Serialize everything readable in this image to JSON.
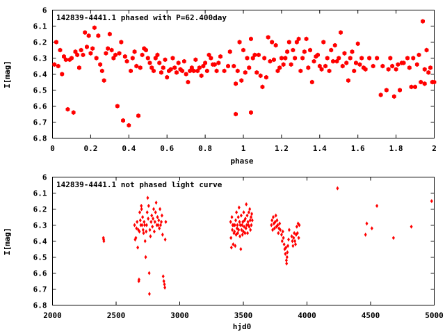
{
  "chart_data": [
    {
      "type": "scatter",
      "title": "142839-4441.1 phased with P=62.400day",
      "xlabel": "phase",
      "ylabel": "I[mag]",
      "xlim": [
        0,
        2
      ],
      "ylim": [
        6.8,
        6
      ],
      "y_reversed": true,
      "grid": false,
      "x_ticks": [
        "0",
        "0.2",
        "0.4",
        "0.6",
        "0.8",
        "1",
        "1.2",
        "1.4",
        "1.6",
        "1.8",
        "2"
      ],
      "y_ticks": [
        "6",
        "6.1",
        "6.2",
        "6.3",
        "6.4",
        "6.5",
        "6.6",
        "6.7",
        "6.8"
      ],
      "marker": "filled-hexagon",
      "color": "#ff0000",
      "points": [
        [
          0.01,
          6.34
        ],
        [
          0.02,
          6.2
        ],
        [
          0.03,
          6.35
        ],
        [
          0.04,
          6.25
        ],
        [
          0.05,
          6.4
        ],
        [
          0.06,
          6.29
        ],
        [
          0.07,
          6.31
        ],
        [
          0.08,
          6.62
        ],
        [
          0.09,
          6.31
        ],
        [
          0.1,
          6.3
        ],
        [
          0.11,
          6.64
        ],
        [
          0.12,
          6.26
        ],
        [
          0.13,
          6.28
        ],
        [
          0.14,
          6.36
        ],
        [
          0.15,
          6.25
        ],
        [
          0.16,
          6.28
        ],
        [
          0.17,
          6.14
        ],
        [
          0.18,
          6.23
        ],
        [
          0.19,
          6.16
        ],
        [
          0.2,
          6.27
        ],
        [
          0.21,
          6.24
        ],
        [
          0.22,
          6.11
        ],
        [
          0.23,
          6.3
        ],
        [
          0.24,
          6.16
        ],
        [
          0.25,
          6.34
        ],
        [
          0.26,
          6.38
        ],
        [
          0.27,
          6.44
        ],
        [
          0.28,
          6.27
        ],
        [
          0.29,
          6.24
        ],
        [
          0.3,
          6.15
        ],
        [
          0.31,
          6.25
        ],
        [
          0.32,
          6.3
        ],
        [
          0.33,
          6.28
        ],
        [
          0.34,
          6.6
        ],
        [
          0.35,
          6.27
        ],
        [
          0.36,
          6.2
        ],
        [
          0.37,
          6.69
        ],
        [
          0.38,
          6.29
        ],
        [
          0.39,
          6.32
        ],
        [
          0.4,
          6.72
        ],
        [
          0.41,
          6.38
        ],
        [
          0.42,
          6.3
        ],
        [
          0.43,
          6.26
        ],
        [
          0.44,
          6.35
        ],
        [
          0.45,
          6.66
        ],
        [
          0.46,
          6.36
        ],
        [
          0.47,
          6.28
        ],
        [
          0.48,
          6.24
        ],
        [
          0.49,
          6.25
        ],
        [
          0.5,
          6.3
        ],
        [
          0.51,
          6.33
        ],
        [
          0.52,
          6.36
        ],
        [
          0.53,
          6.38
        ],
        [
          0.54,
          6.3
        ],
        [
          0.55,
          6.28
        ],
        [
          0.56,
          6.33
        ],
        [
          0.57,
          6.39
        ],
        [
          0.58,
          6.36
        ],
        [
          0.59,
          6.31
        ],
        [
          0.6,
          6.42
        ],
        [
          0.61,
          6.38
        ],
        [
          0.62,
          6.37
        ],
        [
          0.63,
          6.3
        ],
        [
          0.64,
          6.36
        ],
        [
          0.65,
          6.39
        ],
        [
          0.66,
          6.33
        ],
        [
          0.67,
          6.37
        ],
        [
          0.68,
          6.38
        ],
        [
          0.69,
          6.32
        ],
        [
          0.7,
          6.4
        ],
        [
          0.71,
          6.45
        ],
        [
          0.72,
          6.38
        ],
        [
          0.73,
          6.36
        ],
        [
          0.74,
          6.38
        ],
        [
          0.75,
          6.31
        ],
        [
          0.76,
          6.38
        ],
        [
          0.77,
          6.36
        ],
        [
          0.78,
          6.41
        ],
        [
          0.79,
          6.35
        ],
        [
          0.8,
          6.33
        ],
        [
          0.81,
          6.38
        ],
        [
          0.82,
          6.28
        ],
        [
          0.83,
          6.3
        ],
        [
          0.84,
          6.34
        ],
        [
          0.85,
          6.34
        ],
        [
          0.86,
          6.38
        ],
        [
          0.87,
          6.33
        ],
        [
          0.88,
          6.29
        ],
        [
          0.9,
          6.38
        ],
        [
          0.92,
          6.35
        ],
        [
          0.93,
          6.26
        ],
        [
          0.95,
          6.35
        ],
        [
          0.96,
          6.46
        ],
        [
          0.96,
          6.65
        ],
        [
          0.97,
          6.38
        ],
        [
          0.98,
          6.2
        ],
        [
          0.99,
          6.44
        ],
        [
          1.0,
          6.25
        ],
        [
          1.01,
          6.39
        ],
        [
          1.02,
          6.3
        ],
        [
          1.03,
          6.36
        ],
        [
          1.04,
          6.18
        ],
        [
          1.04,
          6.64
        ],
        [
          1.05,
          6.3
        ],
        [
          1.06,
          6.28
        ],
        [
          1.07,
          6.39
        ],
        [
          1.08,
          6.28
        ],
        [
          1.09,
          6.41
        ],
        [
          1.1,
          6.48
        ],
        [
          1.11,
          6.3
        ],
        [
          1.12,
          6.42
        ],
        [
          1.13,
          6.17
        ],
        [
          1.14,
          6.32
        ],
        [
          1.15,
          6.2
        ],
        [
          1.16,
          6.31
        ],
        [
          1.17,
          6.22
        ],
        [
          1.18,
          6.38
        ],
        [
          1.19,
          6.36
        ],
        [
          1.2,
          6.3
        ],
        [
          1.21,
          6.34
        ],
        [
          1.22,
          6.3
        ],
        [
          1.23,
          6.26
        ],
        [
          1.24,
          6.2
        ],
        [
          1.25,
          6.34
        ],
        [
          1.26,
          6.25
        ],
        [
          1.27,
          6.3
        ],
        [
          1.28,
          6.2
        ],
        [
          1.29,
          6.18
        ],
        [
          1.3,
          6.38
        ],
        [
          1.31,
          6.3
        ],
        [
          1.32,
          6.26
        ],
        [
          1.33,
          6.18
        ],
        [
          1.34,
          6.36
        ],
        [
          1.35,
          6.25
        ],
        [
          1.36,
          6.45
        ],
        [
          1.37,
          6.32
        ],
        [
          1.38,
          6.29
        ],
        [
          1.39,
          6.28
        ],
        [
          1.4,
          6.35
        ],
        [
          1.41,
          6.37
        ],
        [
          1.42,
          6.2
        ],
        [
          1.43,
          6.35
        ],
        [
          1.44,
          6.3
        ],
        [
          1.45,
          6.38
        ],
        [
          1.46,
          6.25
        ],
        [
          1.47,
          6.32
        ],
        [
          1.48,
          6.22
        ],
        [
          1.49,
          6.32
        ],
        [
          1.5,
          6.3
        ],
        [
          1.51,
          6.14
        ],
        [
          1.52,
          6.35
        ],
        [
          1.53,
          6.27
        ],
        [
          1.54,
          6.33
        ],
        [
          1.55,
          6.44
        ],
        [
          1.56,
          6.3
        ],
        [
          1.57,
          6.26
        ],
        [
          1.58,
          6.38
        ],
        [
          1.59,
          6.33
        ],
        [
          1.6,
          6.21
        ],
        [
          1.61,
          6.34
        ],
        [
          1.62,
          6.3
        ],
        [
          1.63,
          6.36
        ],
        [
          1.64,
          6.37
        ],
        [
          1.66,
          6.3
        ],
        [
          1.68,
          6.35
        ],
        [
          1.7,
          6.3
        ],
        [
          1.72,
          6.53
        ],
        [
          1.73,
          6.35
        ],
        [
          1.75,
          6.5
        ],
        [
          1.76,
          6.37
        ],
        [
          1.77,
          6.3
        ],
        [
          1.78,
          6.35
        ],
        [
          1.79,
          6.54
        ],
        [
          1.8,
          6.37
        ],
        [
          1.81,
          6.34
        ],
        [
          1.82,
          6.5
        ],
        [
          1.83,
          6.33
        ],
        [
          1.84,
          6.33
        ],
        [
          1.86,
          6.3
        ],
        [
          1.87,
          6.36
        ],
        [
          1.88,
          6.48
        ],
        [
          1.89,
          6.3
        ],
        [
          1.9,
          6.48
        ],
        [
          1.91,
          6.34
        ],
        [
          1.92,
          6.28
        ],
        [
          1.93,
          6.45
        ],
        [
          1.94,
          6.07
        ],
        [
          1.95,
          6.37
        ],
        [
          1.95,
          6.46
        ],
        [
          1.96,
          6.25
        ],
        [
          1.97,
          6.39
        ],
        [
          1.98,
          6.36
        ],
        [
          1.99,
          6.45
        ],
        [
          2.0,
          6.45
        ]
      ]
    },
    {
      "type": "scatter",
      "title": "142839-4441.1 not phased light curve",
      "xlabel": "hjd0",
      "ylabel": "I[mag]",
      "xlim": [
        2000,
        5000
      ],
      "ylim": [
        6.8,
        6
      ],
      "y_reversed": true,
      "grid": false,
      "x_ticks": [
        "2000",
        "2500",
        "3000",
        "3500",
        "4000",
        "4500",
        "5000"
      ],
      "y_ticks": [
        "6",
        "6.1",
        "6.2",
        "6.3",
        "6.4",
        "6.5",
        "6.6",
        "6.7",
        "6.8"
      ],
      "marker": "filled-diamond",
      "color": "#ff0000",
      "points": [
        [
          2400,
          6.38
        ],
        [
          2402,
          6.39
        ],
        [
          2404,
          6.4
        ],
        [
          2645,
          6.3
        ],
        [
          2650,
          6.39
        ],
        [
          2655,
          6.38
        ],
        [
          2660,
          6.32
        ],
        [
          2665,
          6.28
        ],
        [
          2670,
          6.44
        ],
        [
          2675,
          6.33
        ],
        [
          2678,
          6.65
        ],
        [
          2680,
          6.64
        ],
        [
          2683,
          6.34
        ],
        [
          2686,
          6.22
        ],
        [
          2690,
          6.27
        ],
        [
          2694,
          6.3
        ],
        [
          2698,
          6.18
        ],
        [
          2700,
          6.2
        ],
        [
          2704,
          6.3
        ],
        [
          2708,
          6.25
        ],
        [
          2712,
          6.33
        ],
        [
          2716,
          6.35
        ],
        [
          2720,
          6.28
        ],
        [
          2724,
          6.3
        ],
        [
          2728,
          6.4
        ],
        [
          2732,
          6.5
        ],
        [
          2736,
          6.34
        ],
        [
          2740,
          6.3
        ],
        [
          2744,
          6.22
        ],
        [
          2748,
          6.13
        ],
        [
          2752,
          6.26
        ],
        [
          2756,
          6.18
        ],
        [
          2760,
          6.6
        ],
        [
          2762,
          6.73
        ],
        [
          2765,
          6.33
        ],
        [
          2770,
          6.37
        ],
        [
          2775,
          6.28
        ],
        [
          2780,
          6.24
        ],
        [
          2785,
          6.31
        ],
        [
          2790,
          6.26
        ],
        [
          2795,
          6.2
        ],
        [
          2800,
          6.34
        ],
        [
          2805,
          6.28
        ],
        [
          2810,
          6.22
        ],
        [
          2815,
          6.16
        ],
        [
          2820,
          6.3
        ],
        [
          2825,
          6.25
        ],
        [
          2830,
          6.3
        ],
        [
          2835,
          6.27
        ],
        [
          2840,
          6.32
        ],
        [
          2845,
          6.2
        ],
        [
          2850,
          6.3
        ],
        [
          2855,
          6.28
        ],
        [
          2860,
          6.24
        ],
        [
          2865,
          6.36
        ],
        [
          2870,
          6.62
        ],
        [
          2875,
          6.65
        ],
        [
          2880,
          6.67
        ],
        [
          2883,
          6.69
        ],
        [
          2886,
          6.39
        ],
        [
          2890,
          6.28
        ],
        [
          3400,
          6.28
        ],
        [
          3403,
          6.38
        ],
        [
          3406,
          6.44
        ],
        [
          3410,
          6.25
        ],
        [
          3413,
          6.33
        ],
        [
          3416,
          6.3
        ],
        [
          3420,
          6.42
        ],
        [
          3423,
          6.3
        ],
        [
          3426,
          6.35
        ],
        [
          3430,
          6.34
        ],
        [
          3433,
          6.3
        ],
        [
          3436,
          6.43
        ],
        [
          3440,
          6.27
        ],
        [
          3443,
          6.36
        ],
        [
          3446,
          6.22
        ],
        [
          3450,
          6.32
        ],
        [
          3453,
          6.3
        ],
        [
          3456,
          6.35
        ],
        [
          3460,
          6.25
        ],
        [
          3463,
          6.33
        ],
        [
          3466,
          6.19
        ],
        [
          3470,
          6.28
        ],
        [
          3473,
          6.37
        ],
        [
          3476,
          6.3
        ],
        [
          3480,
          6.45
        ],
        [
          3483,
          6.24
        ],
        [
          3486,
          6.33
        ],
        [
          3490,
          6.3
        ],
        [
          3493,
          6.36
        ],
        [
          3496,
          6.28
        ],
        [
          3500,
          6.34
        ],
        [
          3503,
          6.22
        ],
        [
          3506,
          6.31
        ],
        [
          3510,
          6.27
        ],
        [
          3513,
          6.35
        ],
        [
          3516,
          6.26
        ],
        [
          3520,
          6.32
        ],
        [
          3523,
          6.17
        ],
        [
          3526,
          6.3
        ],
        [
          3530,
          6.24
        ],
        [
          3533,
          6.35
        ],
        [
          3536,
          6.28
        ],
        [
          3540,
          6.3
        ],
        [
          3543,
          6.22
        ],
        [
          3546,
          6.31
        ],
        [
          3550,
          6.2
        ],
        [
          3553,
          6.27
        ],
        [
          3556,
          6.33
        ],
        [
          3560,
          6.25
        ],
        [
          3563,
          6.3
        ],
        [
          3566,
          6.23
        ],
        [
          3570,
          6.27
        ],
        [
          3720,
          6.3
        ],
        [
          3725,
          6.27
        ],
        [
          3730,
          6.33
        ],
        [
          3735,
          6.25
        ],
        [
          3740,
          6.29
        ],
        [
          3745,
          6.32
        ],
        [
          3750,
          6.28
        ],
        [
          3755,
          6.24
        ],
        [
          3760,
          6.31
        ],
        [
          3765,
          6.27
        ],
        [
          3770,
          6.3
        ],
        [
          3775,
          6.35
        ],
        [
          3780,
          6.32
        ],
        [
          3785,
          6.29
        ],
        [
          3790,
          6.33
        ],
        [
          3800,
          6.36
        ],
        [
          3805,
          6.4
        ],
        [
          3810,
          6.34
        ],
        [
          3815,
          6.38
        ],
        [
          3820,
          6.42
        ],
        [
          3825,
          6.45
        ],
        [
          3830,
          6.48
        ],
        [
          3835,
          6.44
        ],
        [
          3838,
          6.52
        ],
        [
          3840,
          6.54
        ],
        [
          3843,
          6.5
        ],
        [
          3846,
          6.47
        ],
        [
          3850,
          6.43
        ],
        [
          3855,
          6.39
        ],
        [
          3860,
          6.33
        ],
        [
          3880,
          6.37
        ],
        [
          3885,
          6.4
        ],
        [
          3890,
          6.43
        ],
        [
          3895,
          6.38
        ],
        [
          3900,
          6.35
        ],
        [
          3905,
          6.4
        ],
        [
          3910,
          6.42
        ],
        [
          3915,
          6.36
        ],
        [
          3920,
          6.31
        ],
        [
          3925,
          6.35
        ],
        [
          3930,
          6.29
        ],
        [
          3935,
          6.38
        ],
        [
          3940,
          6.3
        ],
        [
          4240,
          6.07
        ],
        [
          4460,
          6.36
        ],
        [
          4470,
          6.29
        ],
        [
          4510,
          6.32
        ],
        [
          4550,
          6.18
        ],
        [
          4680,
          6.38
        ],
        [
          4820,
          6.31
        ],
        [
          4980,
          6.15
        ]
      ]
    }
  ]
}
